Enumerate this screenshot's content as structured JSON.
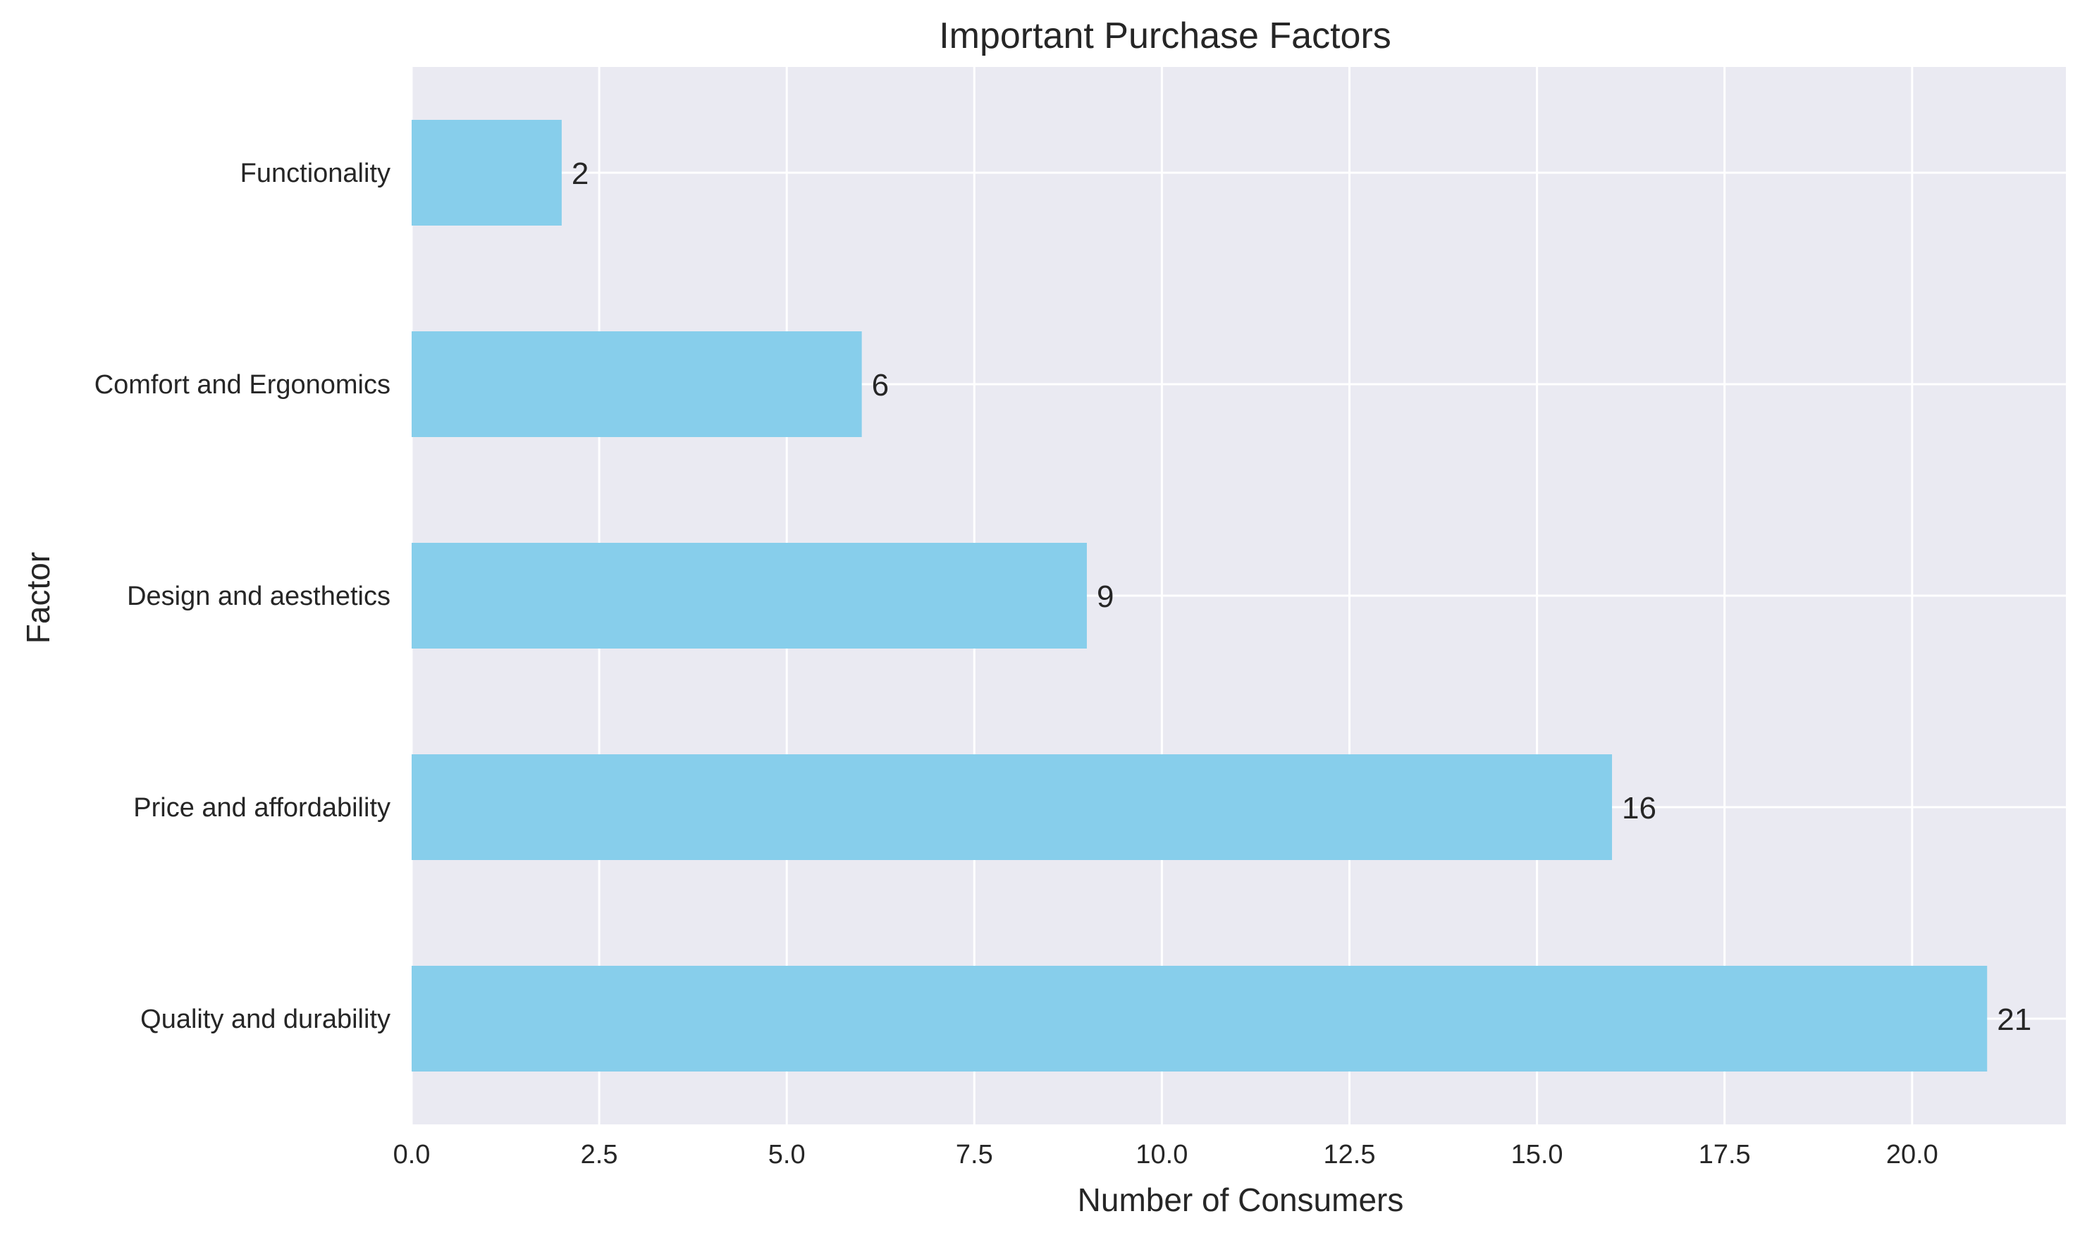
{
  "chart_data": {
    "type": "bar",
    "orientation": "horizontal",
    "title": "Important Purchase Factors",
    "xlabel": "Number of Consumers",
    "ylabel": "Factor",
    "categories": [
      "Quality and durability",
      "Price and affordability",
      "Design and aesthetics",
      "Comfort and Ergonomics",
      "Functionality"
    ],
    "values": [
      21,
      16,
      9,
      6,
      2
    ],
    "xlim": [
      0,
      22.05
    ],
    "xticks": [
      0,
      2.5,
      5,
      7.5,
      10,
      12.5,
      15,
      17.5,
      20
    ],
    "xtick_labels": [
      "0.0",
      "2.5",
      "5.0",
      "7.5",
      "10.0",
      "12.5",
      "15.0",
      "17.5",
      "20.0"
    ],
    "grid": true,
    "legend": "none",
    "colors": {
      "bar": "#87ceeb",
      "plot_background": "#eaeaf2",
      "grid": "#ffffff",
      "text": "#262626"
    }
  }
}
